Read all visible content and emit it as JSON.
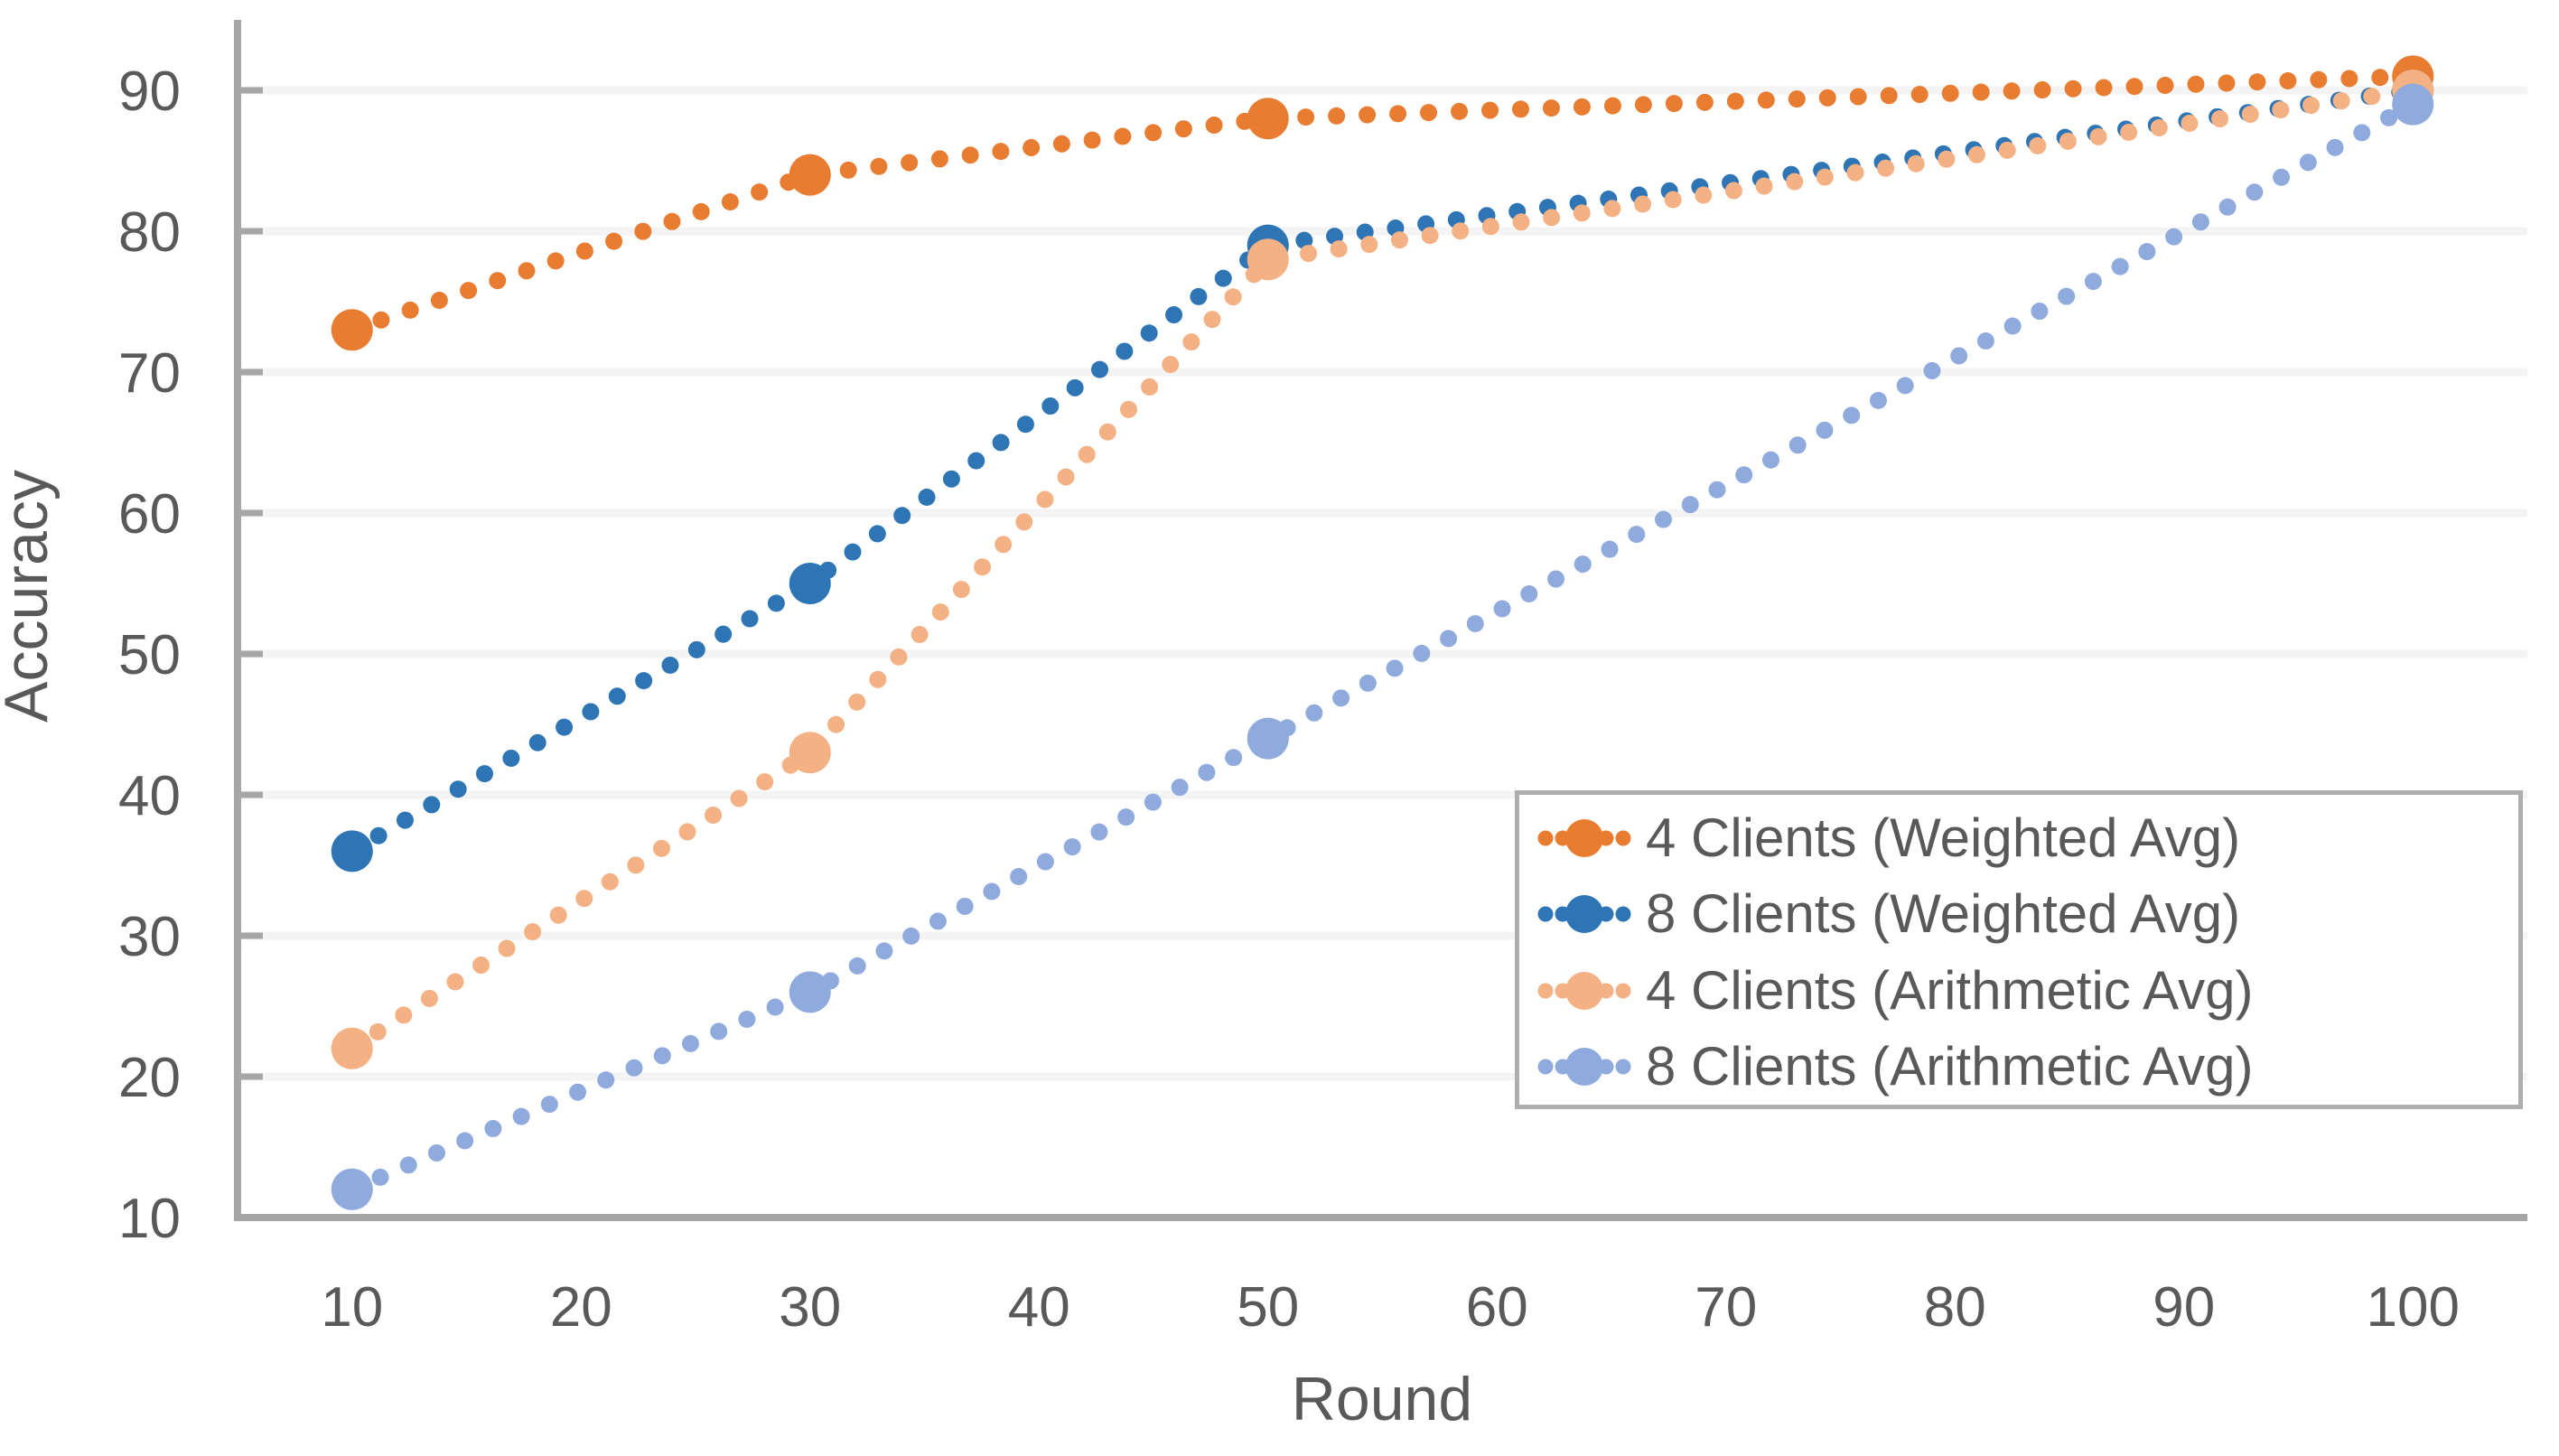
{
  "chart_data": {
    "type": "line",
    "subtype": "dotted-line-with-markers",
    "xlabel": "Round",
    "ylabel": "Accuracy",
    "x": [
      10,
      30,
      50,
      100
    ],
    "series": [
      {
        "name": "4 Clients (Weighted Avg)",
        "color": "#E87D31",
        "values": [
          73,
          84,
          88,
          91
        ]
      },
      {
        "name": "8 Clients (Weighted Avg)",
        "color": "#2E75B6",
        "values": [
          36,
          55,
          79,
          90
        ]
      },
      {
        "name": "4 Clients (Arithmetic Avg)",
        "color": "#F4B183",
        "values": [
          22,
          43,
          78,
          90
        ]
      },
      {
        "name": "8 Clients (Arithmetic Avg)",
        "color": "#8FAADC",
        "values": [
          12,
          26,
          44,
          89
        ]
      }
    ],
    "x_ticks": [
      10,
      20,
      30,
      40,
      50,
      60,
      70,
      80,
      90,
      100
    ],
    "y_ticks": [
      10,
      20,
      30,
      40,
      50,
      60,
      70,
      80,
      90
    ],
    "xlim": [
      5,
      105
    ],
    "ylim": [
      10,
      95
    ],
    "grid": "horizontal",
    "legend_position": "lower right",
    "colors": {
      "axis": "#A6A6A6",
      "text": "#595959",
      "gridline": "#F4F4F4",
      "legend_border": "#ADADAD",
      "background": "#FFFFFF"
    }
  }
}
